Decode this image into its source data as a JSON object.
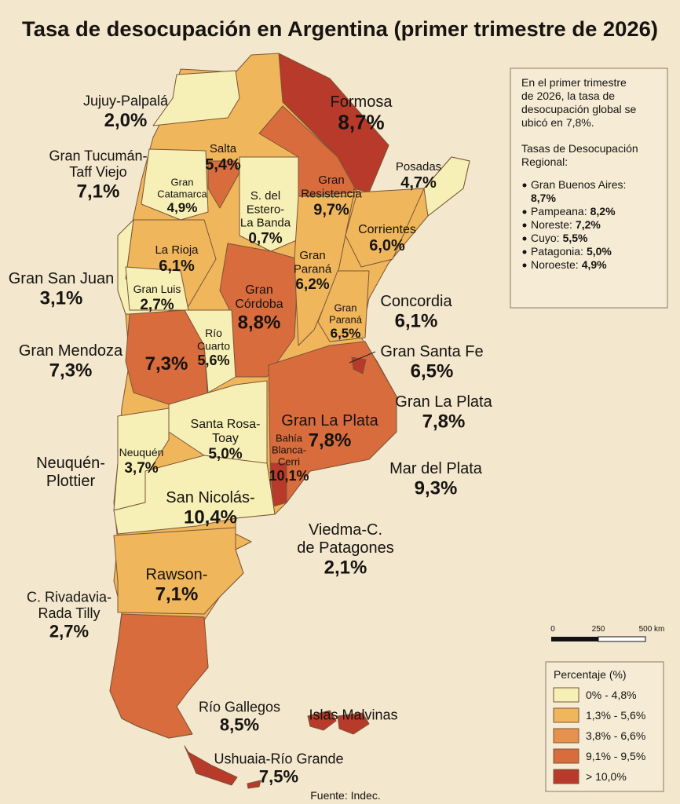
{
  "title": "Tasa de desocupación en Argentina (primer trimestre de 2026)",
  "labels": [
    {
      "lines": [
        "Jujuy-Palpalá"
      ],
      "value": "2,0%"
    },
    {
      "lines": [
        "Formosa"
      ],
      "value": "8,7%"
    },
    {
      "lines": [
        "Salta"
      ],
      "value": "5,4%"
    },
    {
      "lines": [
        "Gran Tucumán-",
        "Taff Viejo"
      ],
      "value": "7,1%"
    },
    {
      "lines": [
        "Posadas"
      ],
      "value": "4,7%"
    },
    {
      "lines": [
        "Gran",
        "Catamarca"
      ],
      "value": "4,9%"
    },
    {
      "lines": [
        "S. del",
        "Estero-",
        "La Banda"
      ],
      "value": "0,7%"
    },
    {
      "lines": [
        "Gran",
        "Resistencia"
      ],
      "value": "9,7%"
    },
    {
      "lines": [
        "Corrientes"
      ],
      "value": "6,0%"
    },
    {
      "lines": [
        "La Rioja"
      ],
      "value": "6,1%"
    },
    {
      "lines": [
        "Gran San Juan"
      ],
      "value": "3,1%"
    },
    {
      "lines": [
        "Gran",
        "Paraná"
      ],
      "value": "6,2%"
    },
    {
      "lines": [
        "Gran",
        "Córdoba"
      ],
      "value": "8,8%"
    },
    {
      "lines": [
        "Gran Luis"
      ],
      "value": "2,7%"
    },
    {
      "lines": [
        "Concordia"
      ],
      "value": "6,1%"
    },
    {
      "lines": [
        "Gran",
        "Paraná"
      ],
      "value": "6,5%"
    },
    {
      "lines": [
        "Gran Mendoza"
      ],
      "value": "7,3%"
    },
    {
      "lines": [
        "Río",
        "Cuarto"
      ],
      "value": "5,6%"
    },
    {
      "lines": [
        "Gran Santa Fe"
      ],
      "value": "6,5%"
    },
    {
      "lines": [],
      "value": "7,3%"
    },
    {
      "lines": [
        "Gran La Plata"
      ],
      "value": "7,8%"
    },
    {
      "lines": [
        "Santa Rosa-",
        "Toay"
      ],
      "value": "5,0%"
    },
    {
      "lines": [
        "Gran La Plata"
      ],
      "value": "7,8%"
    },
    {
      "lines": [
        "Bahía",
        "Blanca-",
        "Cerri"
      ],
      "value": "10,1%"
    },
    {
      "lines": [
        "Neuquén-",
        "Plottier"
      ]
    },
    {
      "lines": [
        "Neuquén"
      ],
      "value": "3,7%"
    },
    {
      "lines": [
        "Mar del Plata"
      ],
      "value": "9,3%"
    },
    {
      "lines": [
        "San Nicolás-"
      ],
      "value": "10,4%"
    },
    {
      "lines": [
        "Viedma-C.",
        "de Patagones"
      ],
      "value": "2,1%"
    },
    {
      "lines": [
        "Rawson-"
      ],
      "value": "7,1%"
    },
    {
      "lines": [
        "C. Rivadavia-",
        "Rada Tilly"
      ],
      "value": "2,7%"
    },
    {
      "lines": [
        "Río Gallegos"
      ],
      "value": "8,5%"
    },
    {
      "lines": [
        "Islas Malvinas"
      ]
    },
    {
      "lines": [
        "Ushuaia-Río Grande"
      ],
      "value": "7,5%"
    }
  ],
  "info": {
    "summary": [
      "En el primer trimestre",
      "de 2026, la tasa de",
      "desocupación global se",
      "ubicó en 7,8%."
    ],
    "heading": [
      "Tasas de Desocupación",
      "Regional:"
    ],
    "items": [
      {
        "name": "Gran Buenos Aires:",
        "value": "8,7%"
      },
      {
        "name": "Pampeana:",
        "value": "8,2%"
      },
      {
        "name": "Noreste:",
        "value": "7,2%"
      },
      {
        "name": "Cuyo:",
        "value": "5,5%"
      },
      {
        "name": "Patagonia:",
        "value": "5,0%"
      },
      {
        "name": "Noroeste:",
        "value": "4,9%"
      }
    ]
  },
  "scale": {
    "labels": [
      "0",
      "250",
      "500 km"
    ]
  },
  "legend": {
    "title": "Percentaje (%)",
    "items": [
      {
        "label": "0% - 4,8%",
        "color": "#f7f0b6"
      },
      {
        "label": "1,3% - 5,6%",
        "color": "#f0b65c"
      },
      {
        "label": "3,8% - 6,6%",
        "color": "#e6924f"
      },
      {
        "label": "9,1% - 9,5%",
        "color": "#d86c3c"
      },
      {
        "label": "> 10,0%",
        "color": "#b73a2a"
      }
    ]
  },
  "source": "Fuente: Indec."
}
